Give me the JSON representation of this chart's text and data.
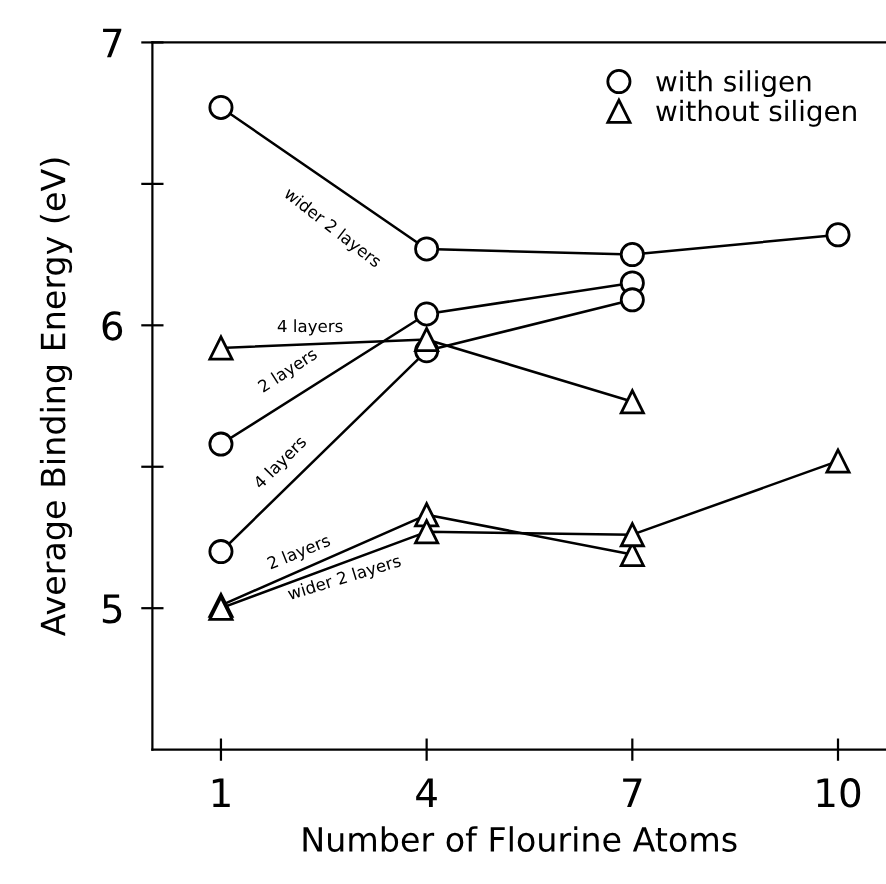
{
  "chart_data": {
    "type": "line",
    "xlabel": "Number of Flourine Atoms",
    "ylabel": "Average Binding Energy (eV)",
    "xlim": [
      0,
      10.7
    ],
    "ylim": [
      4.5,
      7
    ],
    "xticks": [
      1,
      4,
      7,
      10
    ],
    "yticks": [
      5,
      {
        "value": 5.5,
        "label": null
      },
      6,
      {
        "value": 6.5,
        "label": null
      },
      7
    ],
    "grid": false,
    "legend": "top right",
    "line_style": "solid",
    "series": [
      {
        "name": "with siligen",
        "color": "#000000",
        "marker": "circle",
        "x": [
          1,
          4,
          7,
          10
        ],
        "values": [
          6.77,
          6.27,
          6.25,
          6.32
        ]
      },
      {
        "color": "#000000",
        "marker": "circle",
        "x": [
          1,
          4,
          7
        ],
        "values": [
          5.58,
          6.04,
          6.15
        ]
      },
      {
        "color": "#000000",
        "marker": "circle",
        "x": [
          1,
          4,
          7
        ],
        "values": [
          5.2,
          5.91,
          6.09
        ]
      },
      {
        "name": "without siligen",
        "color": "#000000",
        "marker": "triangle",
        "x": [
          1,
          4,
          7
        ],
        "values": [
          5.92,
          5.95,
          5.73
        ]
      },
      {
        "color": "#000000",
        "marker": "triangle",
        "x": [
          1,
          4,
          7
        ],
        "values": [
          5.01,
          5.33,
          5.19
        ]
      },
      {
        "color": "#000000",
        "marker": "triangle",
        "x": [
          1,
          4,
          7,
          10
        ],
        "values": [
          5.0,
          5.27,
          5.26,
          5.52
        ]
      }
    ],
    "annotations": [
      "wider 2 layers",
      "4 layers",
      "2 layers",
      "4 layers",
      "2 layers",
      "wider 2 layers"
    ]
  }
}
